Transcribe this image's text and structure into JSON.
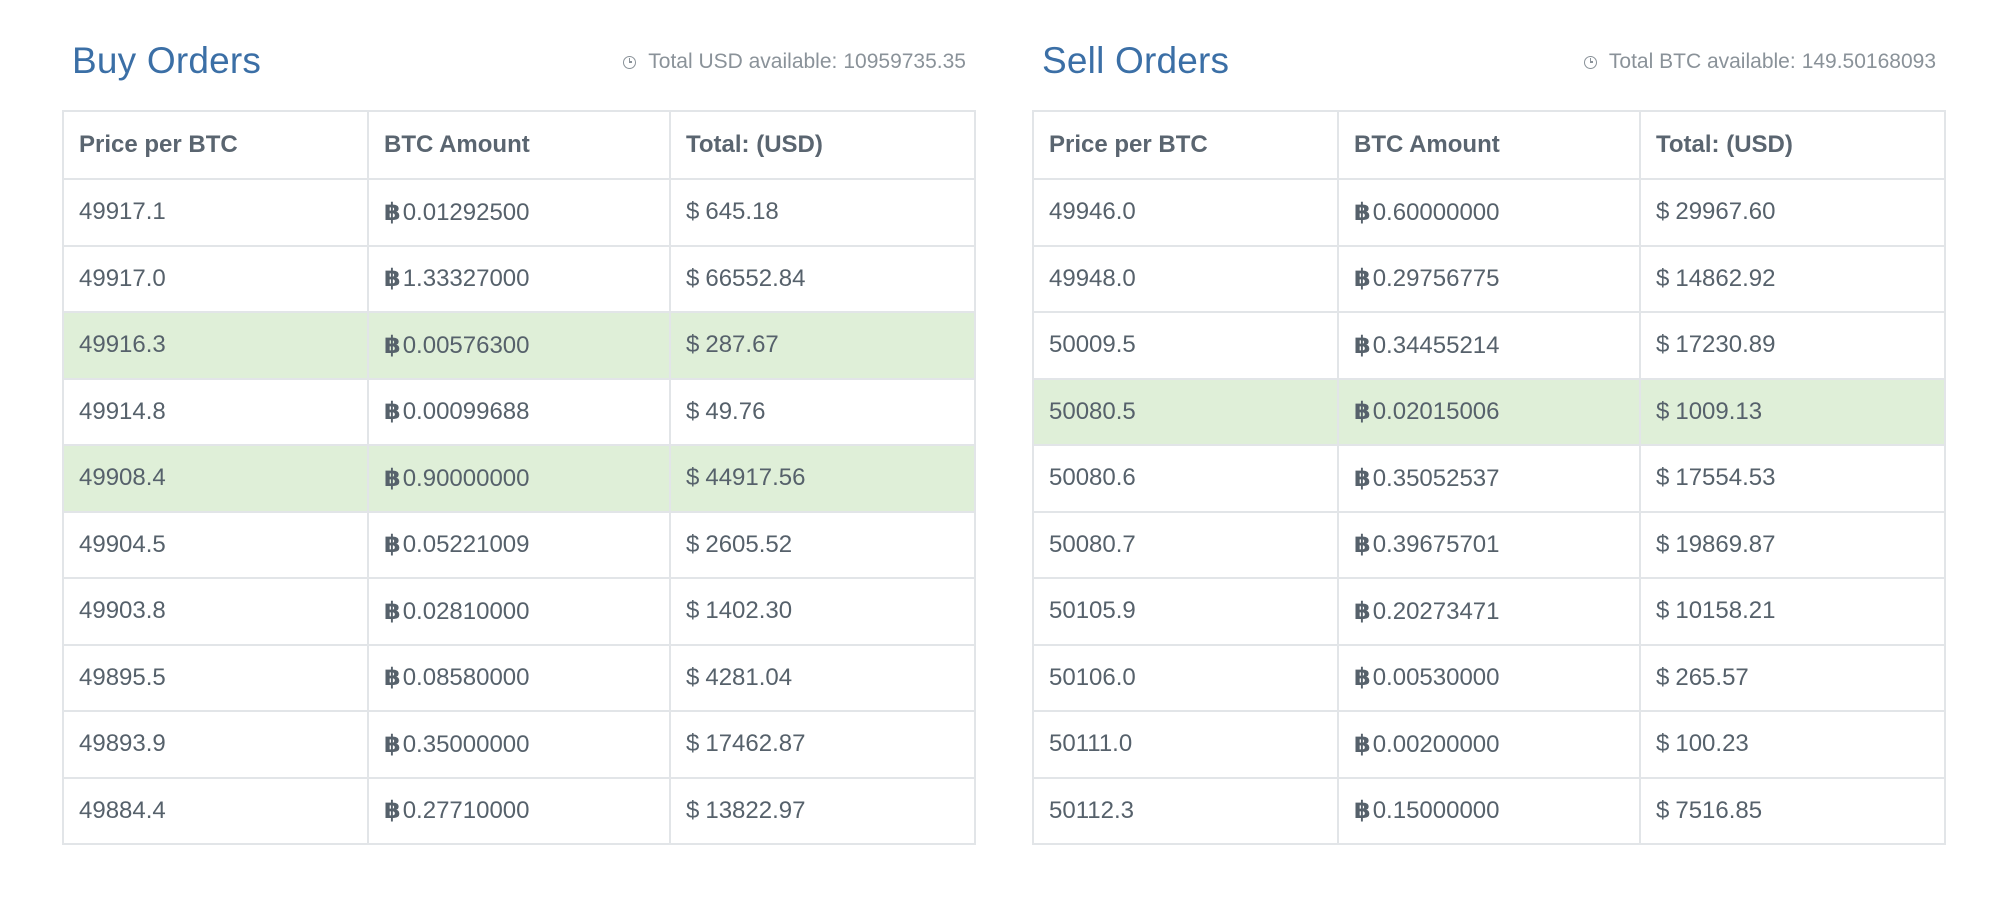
{
  "buy": {
    "title": "Buy Orders",
    "info_label": "Total USD available:",
    "info_value": "10959735.35",
    "headers": [
      "Price per BTC",
      "BTC Amount",
      "Total: (USD)"
    ],
    "btc_symbol": "฿",
    "usd_symbol": "$",
    "highlight_color": "#dfefd8",
    "rows": [
      {
        "price": "49917.1",
        "amount": "0.01292500",
        "total": "645.18",
        "highlight": false
      },
      {
        "price": "49917.0",
        "amount": "1.33327000",
        "total": "66552.84",
        "highlight": false
      },
      {
        "price": "49916.3",
        "amount": "0.00576300",
        "total": "287.67",
        "highlight": true
      },
      {
        "price": "49914.8",
        "amount": "0.00099688",
        "total": "49.76",
        "highlight": false
      },
      {
        "price": "49908.4",
        "amount": "0.90000000",
        "total": "44917.56",
        "highlight": true
      },
      {
        "price": "49904.5",
        "amount": "0.05221009",
        "total": "2605.52",
        "highlight": false
      },
      {
        "price": "49903.8",
        "amount": "0.02810000",
        "total": "1402.30",
        "highlight": false
      },
      {
        "price": "49895.5",
        "amount": "0.08580000",
        "total": "4281.04",
        "highlight": false
      },
      {
        "price": "49893.9",
        "amount": "0.35000000",
        "total": "17462.87",
        "highlight": false
      },
      {
        "price": "49884.4",
        "amount": "0.27710000",
        "total": "13822.97",
        "highlight": false
      }
    ]
  },
  "sell": {
    "title": "Sell Orders",
    "info_label": "Total BTC available:",
    "info_value": "149.50168093",
    "headers": [
      "Price per BTC",
      "BTC Amount",
      "Total: (USD)"
    ],
    "btc_symbol": "฿",
    "usd_symbol": "$",
    "highlight_color": "#dfefd8",
    "rows": [
      {
        "price": "49946.0",
        "amount": "0.60000000",
        "total": "29967.60",
        "highlight": false
      },
      {
        "price": "49948.0",
        "amount": "0.29756775",
        "total": "14862.92",
        "highlight": false
      },
      {
        "price": "50009.5",
        "amount": "0.34455214",
        "total": "17230.89",
        "highlight": false
      },
      {
        "price": "50080.5",
        "amount": "0.02015006",
        "total": "1009.13",
        "highlight": true
      },
      {
        "price": "50080.6",
        "amount": "0.35052537",
        "total": "17554.53",
        "highlight": false
      },
      {
        "price": "50080.7",
        "amount": "0.39675701",
        "total": "19869.87",
        "highlight": false
      },
      {
        "price": "50105.9",
        "amount": "0.20273471",
        "total": "10158.21",
        "highlight": false
      },
      {
        "price": "50106.0",
        "amount": "0.00530000",
        "total": "265.57",
        "highlight": false
      },
      {
        "price": "50111.0",
        "amount": "0.00200000",
        "total": "100.23",
        "highlight": false
      },
      {
        "price": "50112.3",
        "amount": "0.15000000",
        "total": "7516.85",
        "highlight": false
      }
    ]
  }
}
